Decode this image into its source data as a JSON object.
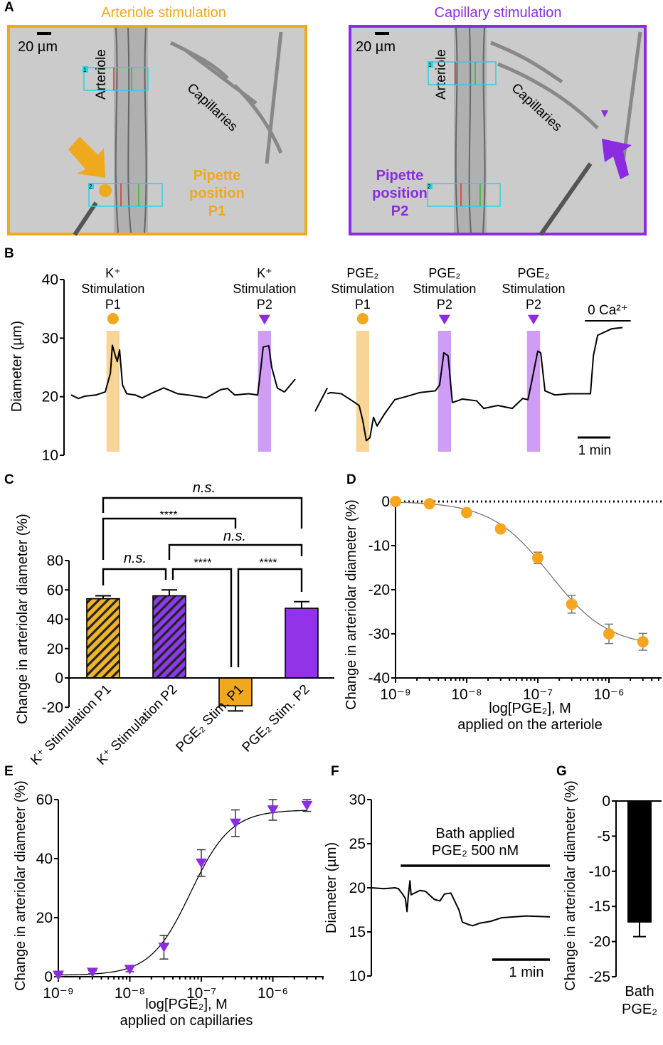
{
  "panel_letters": {
    "a": "A",
    "b": "B",
    "c": "C",
    "d": "D",
    "e": "E",
    "f": "F",
    "g": "G"
  },
  "colors": {
    "orange": "#f0a81c",
    "purple": "#8b2be2",
    "orange_band": "#f8d596",
    "purple_band": "#cf9cf6",
    "roi": "#28d4e0"
  },
  "panel_a": {
    "left": {
      "title": "Arteriole stimulation",
      "scale_label": "20 µm",
      "vessel_label": "Arteriole",
      "capillary_label": "Capillaries",
      "pipette_lines": [
        "Pipette",
        "position",
        "P1"
      ],
      "roi_labels": [
        "1",
        "2"
      ],
      "marker": "circle"
    },
    "right": {
      "title": "Capillary stimulation",
      "scale_label": "20 µm",
      "vessel_label": "Arteriole",
      "capillary_label": "Capillaries",
      "pipette_lines": [
        "Pipette",
        "position",
        "P2"
      ],
      "roi_labels": [
        "1",
        "2"
      ],
      "marker": "triangle-down"
    }
  },
  "chart_data": [
    {
      "panel": "B",
      "type": "line",
      "ylabel": "Diameter (µm)",
      "ylim": [
        10,
        40
      ],
      "yticks": [
        10,
        20,
        30,
        40
      ],
      "x_units": "min",
      "scale_bar": {
        "length": 1,
        "label": "1 min"
      },
      "annotation": {
        "label": "0 Ca²⁺",
        "start": 15.7,
        "end": 17.1
      },
      "stimulations": [
        {
          "lines": [
            "K⁺",
            "Stimulation",
            "P1"
          ],
          "t": 1.28,
          "type": "orange",
          "marker": "circle"
        },
        {
          "lines": [
            "K⁺",
            "Stimulation",
            "P2"
          ],
          "t": 5.91,
          "type": "purple",
          "marker": "triangle-down"
        },
        {
          "lines": [
            "PGE₂",
            "Stimulation",
            "P1"
          ],
          "t": 8.91,
          "type": "orange",
          "marker": "circle"
        },
        {
          "lines": [
            "PGE₂",
            "Stimulation",
            "P2"
          ],
          "t": 11.41,
          "type": "purple",
          "marker": "triangle-down"
        },
        {
          "lines": [
            "PGE₂",
            "Stimulation",
            "P2"
          ],
          "t": 14.13,
          "type": "purple",
          "marker": "triangle-down"
        }
      ],
      "segments": [
        {
          "t": [
            0,
            0.22,
            0.43,
            0.76,
            1.04,
            1.2,
            1.26,
            1.35,
            1.41,
            1.48,
            1.57,
            1.7,
            1.96,
            2.17,
            2.5,
            2.83,
            3.26,
            3.7,
            4.13,
            4.57,
            4.78,
            5,
            5.43,
            5.7,
            5.78,
            5.87,
            6.04,
            6.13,
            6.3,
            6.52
          ],
          "y": [
            20.3,
            19.7,
            20.1,
            20.3,
            20.8,
            24,
            28.8,
            27,
            26,
            28,
            22,
            20.5,
            20.3,
            19.8,
            20.7,
            21.5,
            20.5,
            20.2,
            19.8,
            21.2,
            21.4,
            20.3,
            20.5,
            20.3,
            24,
            28.5,
            28.7,
            25,
            21.5,
            20.8
          ]
        },
        {
          "t": [
            7.83,
            7.93,
            8.26,
            8.59,
            8.8,
            8.91,
            9.02,
            9.13,
            9.24,
            9.35,
            9.57,
            9.89,
            10.22,
            10.65,
            11.13,
            11.26,
            11.39,
            11.52,
            11.65,
            11.96,
            12.39,
            12.61,
            13.04,
            13.48,
            13.8,
            13.96,
            14.09,
            14.26,
            14.35,
            14.48,
            14.78,
            15.22,
            15.87,
            15.96,
            16.09,
            16.52,
            16.85
          ],
          "y": [
            20.5,
            20.7,
            20.5,
            19.3,
            18.5,
            16,
            12.5,
            13,
            16.5,
            15,
            17,
            19.5,
            20,
            20.7,
            21,
            22,
            27.5,
            27,
            19,
            19.6,
            19.3,
            18,
            18.5,
            18,
            19.7,
            19.5,
            23,
            27.8,
            27.5,
            21,
            20.3,
            20.5,
            20.5,
            27,
            30.5,
            31.6,
            31.8
          ]
        }
      ]
    },
    {
      "panel": "C",
      "type": "bar",
      "ylabel": "Change in arteriolar diameter (%)",
      "ylim": [
        -20,
        80
      ],
      "yticks": [
        -20,
        0,
        20,
        40,
        60,
        80
      ],
      "categories": [
        "K⁺ Stimulation P1",
        "K⁺ Stimulation P2",
        "PGE₂ Stim. P1",
        "PGE₂ Stim. P2"
      ],
      "values": [
        54,
        56,
        -19,
        47.5
      ],
      "errors": [
        2,
        4,
        3.5,
        4.5
      ],
      "fills": [
        "orange-hatched",
        "purple-hatched",
        "orange",
        "purple"
      ],
      "comparisons": [
        {
          "pair": [
            "K⁺ Stimulation P1",
            "PGE₂ Stim. P2"
          ],
          "label": "n.s."
        },
        {
          "pair": [
            "K⁺ Stimulation P1",
            "PGE₂ Stim. P1"
          ],
          "label": "****"
        },
        {
          "pair": [
            "K⁺ Stimulation P2",
            "PGE₂ Stim. P2"
          ],
          "label": "n.s."
        },
        {
          "pair": [
            "K⁺ Stimulation P1",
            "K⁺ Stimulation P2"
          ],
          "label": "n.s."
        },
        {
          "pair": [
            "K⁺ Stimulation P2",
            "PGE₂ Stim. P1"
          ],
          "label": "****"
        },
        {
          "pair": [
            "PGE₂ Stim. P1",
            "PGE₂ Stim. P2"
          ],
          "label": "****"
        }
      ]
    },
    {
      "panel": "D",
      "type": "scatter",
      "x_scale": "log",
      "ylabel": "Change in arteriolar diameter (%)",
      "xlabel": [
        "log[PGE₂], M",
        "applied on the arteriole"
      ],
      "xlim": [
        1e-09,
        5e-06
      ],
      "ylim": [
        -40,
        0
      ],
      "yticks": [
        -40,
        -30,
        -20,
        -10,
        0
      ],
      "xticks": [
        {
          "v": 1e-09,
          "label": "10⁻⁹"
        },
        {
          "v": 1e-08,
          "label": "10⁻⁸"
        },
        {
          "v": 1e-07,
          "label": "10⁻⁷"
        },
        {
          "v": 1e-06,
          "label": "10⁻⁶"
        }
      ],
      "x": [
        1e-09,
        3e-09,
        1e-08,
        3e-08,
        1e-07,
        3e-07,
        1e-06,
        3e-06
      ],
      "y": [
        0,
        -0.5,
        -2.5,
        -6.2,
        -12.8,
        -23.3,
        -30,
        -31.8
      ],
      "errors": [
        0.3,
        0.4,
        0.5,
        0.6,
        1.3,
        2,
        2.2,
        1.9
      ],
      "marker": "circle",
      "fit": "sigmoidal dose-response",
      "reference_line": 0
    },
    {
      "panel": "E",
      "type": "scatter",
      "x_scale": "log",
      "ylabel": "Change in arteriolar diameter (%)",
      "xlabel": [
        "log[PGE₂], M",
        "applied on capillaries"
      ],
      "xlim": [
        1e-09,
        5e-06
      ],
      "ylim": [
        0,
        60
      ],
      "yticks": [
        0,
        20,
        40,
        60
      ],
      "xticks": [
        {
          "v": 1e-09,
          "label": "10⁻⁹"
        },
        {
          "v": 1e-08,
          "label": "10⁻⁸"
        },
        {
          "v": 1e-07,
          "label": "10⁻⁷"
        },
        {
          "v": 1e-06,
          "label": "10⁻⁶"
        }
      ],
      "x": [
        1e-09,
        3e-09,
        1e-08,
        3e-08,
        1e-07,
        3e-07,
        1e-06,
        3e-06
      ],
      "y": [
        0.5,
        1.5,
        2.5,
        10,
        38.5,
        52,
        56.5,
        58
      ],
      "errors": [
        0.5,
        0.5,
        0.8,
        4,
        4.5,
        4.5,
        3.5,
        2
      ],
      "marker": "triangle-down",
      "fit": "sigmoidal dose-response"
    },
    {
      "panel": "F",
      "type": "line",
      "ylabel": "Diameter (µm)",
      "ylim": [
        10,
        30
      ],
      "yticks": [
        10,
        15,
        20,
        25,
        30
      ],
      "x_units": "min",
      "annotation": {
        "lines": [
          "Bath applied",
          "PGE₂ 500 nM"
        ],
        "start": 0.51,
        "end": 3.1
      },
      "scale_bar": {
        "length": 1,
        "label": "1 min"
      },
      "t": [
        0,
        0.22,
        0.41,
        0.47,
        0.54,
        0.59,
        0.62,
        0.64,
        0.67,
        0.69,
        0.84,
        0.94,
        1.09,
        1.19,
        1.27,
        1.38,
        1.52,
        1.58,
        1.7,
        1.76,
        1.89,
        2.07,
        2.26,
        2.69,
        3.1
      ],
      "y": [
        20,
        19.9,
        20,
        19.9,
        19.3,
        18.8,
        17.3,
        19,
        20.8,
        19.2,
        19.7,
        19.6,
        18.7,
        18.5,
        19.3,
        19.4,
        17.5,
        16.1,
        15.8,
        15.7,
        16,
        16.2,
        16.6,
        16.8,
        16.7
      ]
    },
    {
      "panel": "G",
      "type": "bar",
      "ylabel": "Change in arteriolar diameter (%)",
      "ylim": [
        -25,
        0
      ],
      "yticks": [
        -25,
        -20,
        -15,
        -10,
        -5,
        0
      ],
      "categories": [
        "Bath PGE₂"
      ],
      "category_lines": [
        "Bath",
        "PGE₂"
      ],
      "values": [
        -17.3
      ],
      "errors": [
        2
      ],
      "fills": [
        "black"
      ]
    }
  ]
}
